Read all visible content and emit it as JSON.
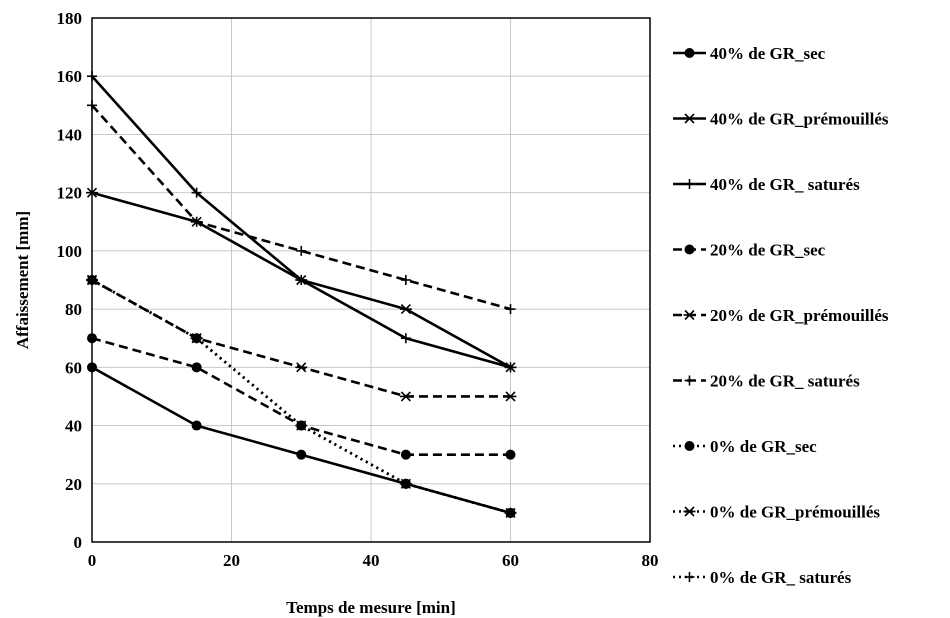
{
  "chart_data": {
    "type": "line",
    "title": "",
    "xlabel": "Temps de mesure  [min]",
    "ylabel": "Affaissement [mm]",
    "xlim": [
      0,
      80
    ],
    "ylim": [
      0,
      180
    ],
    "xticks": [
      "0",
      "20",
      "40",
      "60",
      "80"
    ],
    "yticks": [
      "0",
      "20",
      "40",
      "60",
      "80",
      "100",
      "120",
      "140",
      "160",
      "180"
    ],
    "grid": true,
    "legend_position": "right",
    "series": [
      {
        "name": "40% de GR_sec",
        "marker": "circle",
        "dash": "solid",
        "x": [
          0,
          15,
          30,
          45,
          60
        ],
        "y": [
          60,
          40,
          30,
          20,
          10
        ]
      },
      {
        "name": "40% de GR_prémouillés",
        "marker": "asterisk",
        "dash": "solid",
        "x": [
          0,
          15,
          30,
          45,
          60
        ],
        "y": [
          120,
          110,
          90,
          80,
          60
        ]
      },
      {
        "name": "40% de GR_ saturés",
        "marker": "plus",
        "dash": "solid",
        "x": [
          0,
          15,
          30,
          45,
          60
        ],
        "y": [
          160,
          120,
          90,
          70,
          60
        ]
      },
      {
        "name": "20% de GR_sec",
        "marker": "circle",
        "dash": "dashed",
        "x": [
          0,
          15,
          30,
          45,
          60
        ],
        "y": [
          70,
          60,
          40,
          30,
          30
        ]
      },
      {
        "name": "20% de GR_prémouillés",
        "marker": "asterisk",
        "dash": "dashed",
        "x": [
          0,
          15,
          30,
          45,
          60
        ],
        "y": [
          90,
          70,
          60,
          50,
          50
        ]
      },
      {
        "name": "20% de GR_ saturés",
        "marker": "plus",
        "dash": "dashed",
        "x": [
          0,
          15,
          30,
          45,
          60
        ],
        "y": [
          150,
          110,
          100,
          90,
          80
        ]
      },
      {
        "name": "0% de GR_sec",
        "marker": "circle",
        "dash": "dotted",
        "x": [
          0,
          15,
          30,
          45,
          60
        ],
        "y": [
          90,
          70,
          40,
          20,
          10
        ]
      },
      {
        "name": "0% de GR_prémouillés",
        "marker": "asterisk",
        "dash": "dotted",
        "x": [
          0,
          15,
          30,
          45,
          60
        ],
        "y": [
          90,
          70,
          40,
          20,
          10
        ]
      },
      {
        "name": "0% de GR_ saturés",
        "marker": "plus",
        "dash": "dotted",
        "x": [
          0,
          15,
          30,
          45,
          60
        ],
        "y": [
          90,
          70,
          40,
          20,
          10
        ]
      }
    ]
  }
}
